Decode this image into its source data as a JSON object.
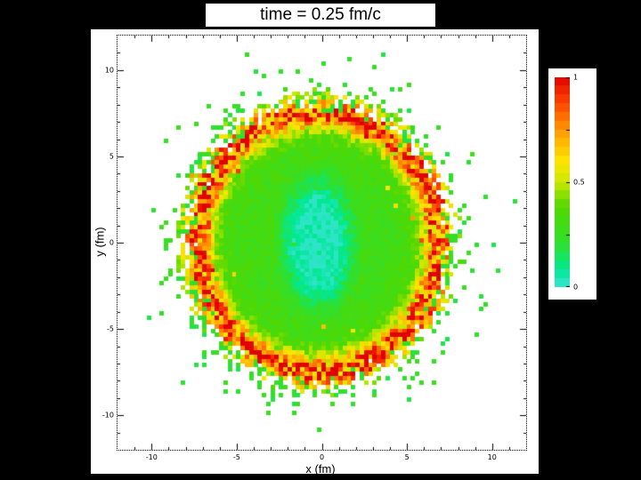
{
  "chart_data": {
    "type": "heatmap",
    "title": "time = 0.25 fm/c",
    "xlabel": "x (fm)",
    "ylabel": "y (fm)",
    "xlim": [
      -12,
      12
    ],
    "ylim": [
      -12,
      12
    ],
    "x_ticks": [
      -10,
      -5,
      0,
      5,
      10
    ],
    "y_ticks": [
      -10,
      -5,
      0,
      5,
      10
    ],
    "minor_tick_step": 1,
    "grid": "off",
    "legend": "none",
    "background": "#ffffff",
    "colorbar": {
      "min": 0,
      "max": 1,
      "bands": 24,
      "tick_values": [
        0,
        0.25,
        0.5,
        0.75,
        1
      ],
      "labeled_ticks": [
        {
          "value": 1,
          "label": "1"
        },
        {
          "value": 0.5,
          "label": "0.5"
        },
        {
          "value": 0,
          "label": "0"
        }
      ]
    },
    "colormap": [
      [
        0.0,
        "#3ce4d6"
      ],
      [
        0.08,
        "#00e896"
      ],
      [
        0.2,
        "#2ee02e"
      ],
      [
        0.38,
        "#52d800"
      ],
      [
        0.5,
        "#cce800"
      ],
      [
        0.6,
        "#ffe400"
      ],
      [
        0.74,
        "#ff9c00"
      ],
      [
        0.87,
        "#ff4800"
      ],
      [
        1.0,
        "#e00000"
      ]
    ],
    "field": {
      "description": "Roughly circular transverse profile centred near (0,0): low-value (cyan, ~0.04) vertically elongated core, green bulk (~0.3) out to r~7 fm, speckled hot ring (yellow/orange/red, 0.5-1.0) at r~7-8 fm, scattered isolated green cells to r~9.5 fm, empty white beyond.",
      "grid_step_fm": 0.25,
      "center": [
        -0.2,
        0.0
      ],
      "core": {
        "rx": 1.7,
        "ry": 3.0,
        "value": 0.04
      },
      "body": {
        "ellipticity_y": 1.06,
        "value": 0.3,
        "edge_rise": 0.06,
        "noise": 0.12
      },
      "ring": {
        "radius": 7.1,
        "width": 0.6,
        "amplitude": 0.55
      },
      "cutoff": {
        "radius": 7.8,
        "jitter": 1.4
      },
      "scatter": {
        "decay": 0.8,
        "probability": 0.35,
        "value": 0.22
      },
      "seed": 1337
    }
  }
}
